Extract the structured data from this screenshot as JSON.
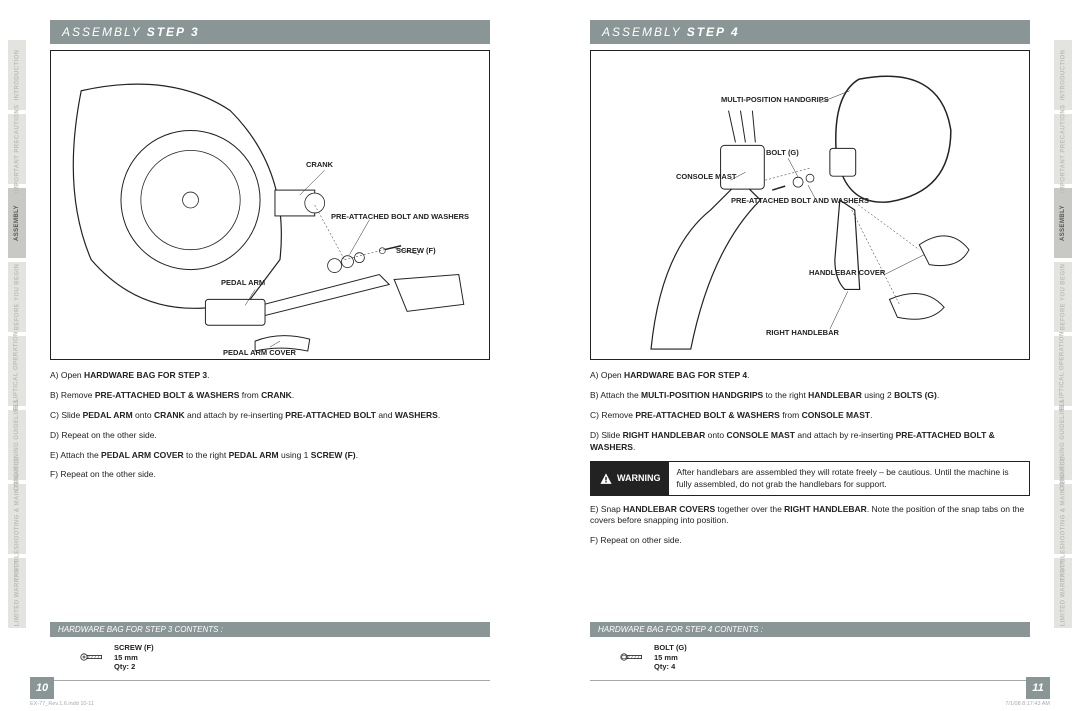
{
  "left": {
    "tabs": [
      "INTRODUCTION",
      "IMPORTANT PRECAUTIONS",
      "ASSEMBLY",
      "BEFORE YOU BEGIN",
      "ELLIPTICAL OPERATION",
      "CONDITIONING GUIDELINES",
      "TROUBLESHOOTING & MAINTENANCE",
      "LIMITED WARRANTY"
    ],
    "header_prefix": "ASSEMBLY ",
    "header_step": "STEP 3",
    "labels": {
      "crank": "CRANK",
      "pre": "PRE-ATTACHED BOLT AND WASHERS",
      "screw": "SCREW (F)",
      "pedal_arm": "PEDAL ARM",
      "pedal_cover": "PEDAL ARM COVER"
    },
    "steps": [
      "A) Open <b>HARDWARE BAG FOR STEP 3</b>.",
      "B) Remove <b>PRE-ATTACHED BOLT & WASHERS</b> from <b>CRANK</b>.",
      "C) Slide <b>PEDAL ARM</b> onto <b>CRANK</b> and attach by re-inserting <b>PRE-ATTACHED BOLT</b> and <b>WASHERS</b>.",
      "D) Repeat on the other side.",
      "E) Attach the <b>PEDAL ARM COVER</b> to the right <b>PEDAL ARM</b> using 1 <b>SCREW (F)</b>.",
      "F) Repeat on the other side."
    ],
    "hwbar": "HARDWARE BAG FOR STEP 3 CONTENTS :",
    "hw": {
      "name": "SCREW (F)",
      "size": "15 mm",
      "qty": "Qty: 2"
    },
    "page_num": "10"
  },
  "right": {
    "tabs": [
      "INTRODUCTION",
      "IMPORTANT PRECAUTIONS",
      "ASSEMBLY",
      "BEFORE YOU BEGIN",
      "ELLIPTICAL OPERATION",
      "CONDITIONING GUIDELINES",
      "TROUBLESHOOTING & MAINTENANCE",
      "LIMITED WARRANTY"
    ],
    "header_prefix": "ASSEMBLY ",
    "header_step": "STEP 4",
    "labels": {
      "multi": "MULTI-POSITION HANDGRIPS",
      "bolt": "BOLT (G)",
      "console": "CONSOLE MAST",
      "pre": "PRE-ATTACHED BOLT AND WASHERS",
      "cover": "HANDLEBAR COVER",
      "right_hb": "RIGHT HANDLEBAR"
    },
    "steps_a": [
      "A) Open <b>HARDWARE BAG FOR STEP 4</b>.",
      "B) Attach the <b>MULTI-POSITION HANDGRIPS</b> to the right <b>HANDLEBAR</b> using 2 <b>BOLTS (G)</b>.",
      "C) Remove <b>PRE-ATTACHED BOLT & WASHERS</b> from <b>CONSOLE MAST</b>.",
      "D) Slide <b>RIGHT HANDLEBAR</b> onto <b>CONSOLE MAST</b> and attach by re-inserting <b>PRE-ATTACHED BOLT & WASHERS</b>."
    ],
    "warning_label": "WARNING",
    "warning_text": "After handlebars are assembled they will rotate freely – be cautious. Until the machine is fully assembled, do not grab the handlebars for support.",
    "steps_b": [
      "E) Snap <b>HANDLEBAR COVERS</b> together over the <b>RIGHT HANDLEBAR</b>. Note the position of the snap tabs on the covers before snapping into position.",
      "F) Repeat on other side."
    ],
    "hwbar": "HARDWARE BAG FOR STEP 4 CONTENTS :",
    "hw": {
      "name": "BOLT (G)",
      "size": "15 mm",
      "qty": "Qty: 4"
    },
    "page_num": "11"
  },
  "footer": {
    "file": "EX-77_Rev.1.6.indd   10-11",
    "date": "7/1/08   8:17:43 AM"
  },
  "active_tab_index": 2,
  "colors": {
    "accent": "#8a9696",
    "tab_bg": "#e3e3e0",
    "tab_fg": "#bdbdb8",
    "tab_active_bg": "#c8c8c4"
  }
}
